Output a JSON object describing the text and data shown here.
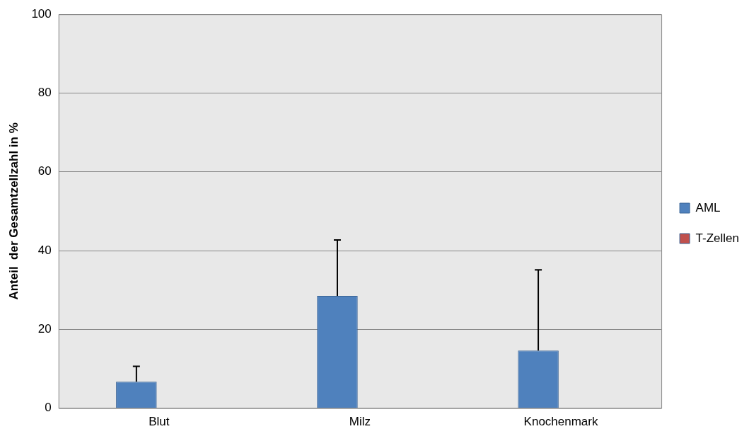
{
  "chart_data": {
    "type": "bar",
    "ylabel": "Anteil  der Gesamtzellzahl in %",
    "categories": [
      "Blut",
      "Milz",
      "Knochenmark"
    ],
    "series": [
      {
        "name": "AML",
        "color": "#4f81bd",
        "values": [
          6.7,
          28.5,
          14.6
        ],
        "errors": [
          [
            6.7,
            10.6
          ],
          [
            28.5,
            42.7
          ],
          [
            14.6,
            35.1
          ]
        ]
      },
      {
        "name": "T-Zellen",
        "color": "#c0504d",
        "values": [
          null,
          null,
          null
        ]
      }
    ],
    "ylim": [
      0,
      100
    ],
    "yticks": [
      0,
      20,
      40,
      60,
      80,
      100
    ],
    "grid": "y",
    "legend": "right"
  }
}
